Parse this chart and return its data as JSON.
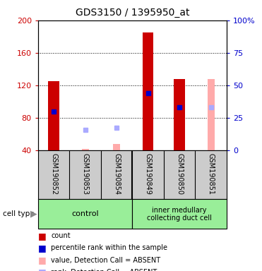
{
  "title": "GDS3150 / 1395950_at",
  "samples": [
    "GSM190852",
    "GSM190853",
    "GSM190854",
    "GSM190849",
    "GSM190850",
    "GSM190851"
  ],
  "ylim_left": [
    40,
    200
  ],
  "ylim_right": [
    0,
    100
  ],
  "yticks_left": [
    40,
    80,
    120,
    160,
    200
  ],
  "yticks_right": [
    0,
    25,
    50,
    75,
    100
  ],
  "count_values": [
    125,
    null,
    null,
    185,
    128,
    null
  ],
  "count_color": "#cc0000",
  "percentile_values": [
    88,
    null,
    null,
    110,
    93,
    null
  ],
  "percentile_color": "#0000cc",
  "absent_value_values": [
    null,
    42,
    48,
    null,
    null,
    128
  ],
  "absent_value_color": "#ffaaaa",
  "absent_rank_values": [
    null,
    65,
    68,
    null,
    null,
    93
  ],
  "absent_rank_color": "#aaaaff",
  "bar_width": 0.35,
  "title_fontsize": 10,
  "tick_fontsize": 8,
  "left_tick_color": "#cc0000",
  "right_tick_color": "#0000cc",
  "group_bg_color": "#99ee99",
  "sample_bg_color": "#cccccc",
  "legend_items": [
    [
      "#cc0000",
      "count"
    ],
    [
      "#0000cc",
      "percentile rank within the sample"
    ],
    [
      "#ffaaaa",
      "value, Detection Call = ABSENT"
    ],
    [
      "#aaaaff",
      "rank, Detection Call = ABSENT"
    ]
  ]
}
